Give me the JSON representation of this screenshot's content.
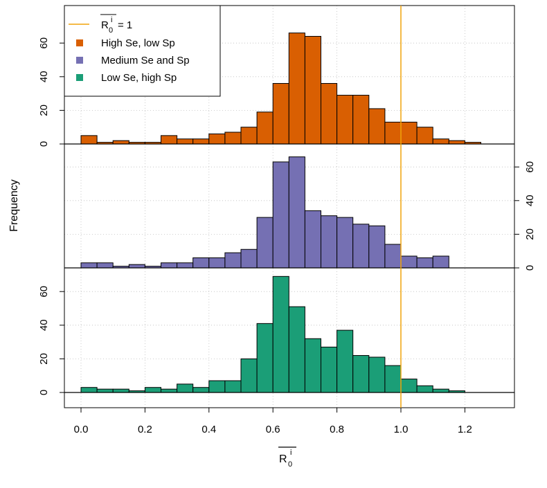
{
  "chart_data": {
    "type": "bar",
    "ylabel": "Frequency",
    "xlabel_base": "R",
    "xlabel_sub": "0",
    "xlabel_sup": "i",
    "bin_width": 0.05,
    "xlim": [
      -0.05,
      1.35
    ],
    "x_ticks": [
      "0.0",
      "0.2",
      "0.4",
      "0.6",
      "0.8",
      "1.0",
      "1.2"
    ],
    "y_ticks": [
      "0",
      "20",
      "40",
      "60"
    ],
    "reference_line": {
      "x": 1.0,
      "label_base": "R",
      "label_sub": "0",
      "label_sup": "i",
      "label_rest": "= 1",
      "color": "#f0a30a"
    },
    "grid": true,
    "legend_placement": "top-left",
    "panels": [
      {
        "name": "High Se, low Sp",
        "color": "#d95f02",
        "y_axis_side": "left",
        "ylim": [
          0,
          70
        ],
        "bin_starts": [
          0.0,
          0.05,
          0.1,
          0.15,
          0.2,
          0.25,
          0.3,
          0.35,
          0.4,
          0.45,
          0.5,
          0.55,
          0.6,
          0.65,
          0.7,
          0.75,
          0.8,
          0.85,
          0.9,
          0.95,
          1.0,
          1.05,
          1.1,
          1.15,
          1.2,
          1.25
        ],
        "values": [
          5,
          1,
          2,
          1,
          1,
          5,
          3,
          3,
          6,
          7,
          10,
          19,
          36,
          66,
          64,
          36,
          29,
          29,
          21,
          13,
          13,
          10,
          3,
          2,
          1,
          0
        ]
      },
      {
        "name": "Medium Se and Sp",
        "color": "#7570b3",
        "y_axis_side": "right",
        "ylim": [
          0,
          70
        ],
        "bin_starts": [
          0.0,
          0.05,
          0.1,
          0.15,
          0.2,
          0.25,
          0.3,
          0.35,
          0.4,
          0.45,
          0.5,
          0.55,
          0.6,
          0.65,
          0.7,
          0.75,
          0.8,
          0.85,
          0.9,
          0.95,
          1.0,
          1.05,
          1.1,
          1.15,
          1.2,
          1.25
        ],
        "values": [
          3,
          3,
          1,
          2,
          1,
          3,
          3,
          6,
          6,
          9,
          11,
          30,
          63,
          66,
          34,
          31,
          30,
          26,
          25,
          14,
          7,
          6,
          7,
          0,
          0,
          0
        ]
      },
      {
        "name": "Low Se, high Sp",
        "color": "#1b9e77",
        "y_axis_side": "left",
        "ylim": [
          0,
          70
        ],
        "bin_starts": [
          0.0,
          0.05,
          0.1,
          0.15,
          0.2,
          0.25,
          0.3,
          0.35,
          0.4,
          0.45,
          0.5,
          0.55,
          0.6,
          0.65,
          0.7,
          0.75,
          0.8,
          0.85,
          0.9,
          0.95,
          1.0,
          1.05,
          1.1,
          1.15,
          1.2,
          1.25
        ],
        "values": [
          3,
          2,
          2,
          1,
          3,
          2,
          5,
          3,
          7,
          7,
          20,
          41,
          69,
          51,
          32,
          27,
          37,
          22,
          21,
          16,
          8,
          4,
          2,
          1,
          0,
          0
        ]
      }
    ]
  }
}
